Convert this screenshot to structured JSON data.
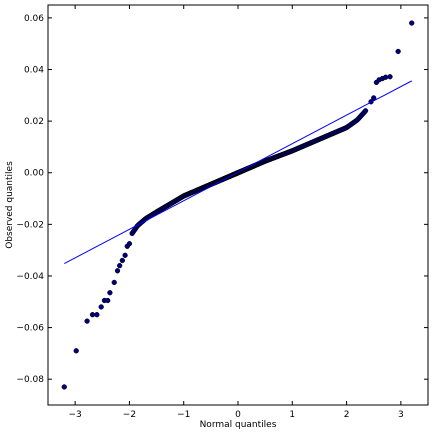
{
  "chart_data": {
    "type": "scatter",
    "xlabel": "Normal quantiles",
    "ylabel": "Observed quantiles",
    "xlim": [
      -3.5,
      3.5
    ],
    "ylim": [
      -0.09,
      0.065
    ],
    "x_ticks": [
      -3,
      -2,
      -1,
      0,
      1,
      2,
      3
    ],
    "x_tick_labels": [
      "−3",
      "−2",
      "−1",
      "0",
      "1",
      "2",
      "3"
    ],
    "y_ticks": [
      -0.08,
      -0.06,
      -0.04,
      -0.02,
      0.0,
      0.02,
      0.04,
      0.06
    ],
    "y_tick_labels": [
      "−0.08",
      "−0.06",
      "−0.04",
      "−0.02",
      "0.00",
      "0.02",
      "0.04",
      "0.06"
    ],
    "grid": false,
    "colors": {
      "points": "#00007a",
      "point_edge": "#000000",
      "reference_line": "#0000ff",
      "axes": "#000000"
    },
    "reference_line": {
      "x": [
        -3.2,
        3.2
      ],
      "y": [
        -0.0352,
        0.0356
      ]
    },
    "outliers": [
      {
        "x": -3.2,
        "y": -0.083
      },
      {
        "x": -2.98,
        "y": -0.069
      },
      {
        "x": -2.78,
        "y": -0.0575
      },
      {
        "x": -2.68,
        "y": -0.055
      },
      {
        "x": -2.6,
        "y": -0.055
      },
      {
        "x": -2.52,
        "y": -0.052
      },
      {
        "x": -2.46,
        "y": -0.0495
      },
      {
        "x": -2.4,
        "y": -0.0495
      },
      {
        "x": -2.36,
        "y": -0.0465
      },
      {
        "x": -2.28,
        "y": -0.0425
      },
      {
        "x": -2.22,
        "y": -0.038
      },
      {
        "x": -2.18,
        "y": -0.036
      },
      {
        "x": -2.13,
        "y": -0.034
      },
      {
        "x": -2.08,
        "y": -0.032
      },
      {
        "x": -2.04,
        "y": -0.0285
      },
      {
        "x": -2.0,
        "y": -0.0275
      },
      {
        "x": 2.45,
        "y": 0.0275
      },
      {
        "x": 2.5,
        "y": 0.029
      },
      {
        "x": 2.55,
        "y": 0.035
      },
      {
        "x": 2.6,
        "y": 0.036
      },
      {
        "x": 2.66,
        "y": 0.0365
      },
      {
        "x": 2.72,
        "y": 0.037
      },
      {
        "x": 2.8,
        "y": 0.0372
      },
      {
        "x": 2.95,
        "y": 0.047
      },
      {
        "x": 3.2,
        "y": 0.058
      }
    ],
    "body_curve": [
      {
        "x": -1.95,
        "y": -0.0235
      },
      {
        "x": -1.85,
        "y": -0.0205
      },
      {
        "x": -1.7,
        "y": -0.0178
      },
      {
        "x": -1.5,
        "y": -0.0152
      },
      {
        "x": -1.2,
        "y": -0.0115
      },
      {
        "x": -1.0,
        "y": -0.009
      },
      {
        "x": -0.5,
        "y": -0.0045
      },
      {
        "x": 0.0,
        "y": 0.0
      },
      {
        "x": 0.5,
        "y": 0.0045
      },
      {
        "x": 1.0,
        "y": 0.0085
      },
      {
        "x": 1.5,
        "y": 0.013
      },
      {
        "x": 2.0,
        "y": 0.0175
      },
      {
        "x": 2.2,
        "y": 0.0205
      },
      {
        "x": 2.35,
        "y": 0.024
      }
    ],
    "body_point_count": 330
  }
}
